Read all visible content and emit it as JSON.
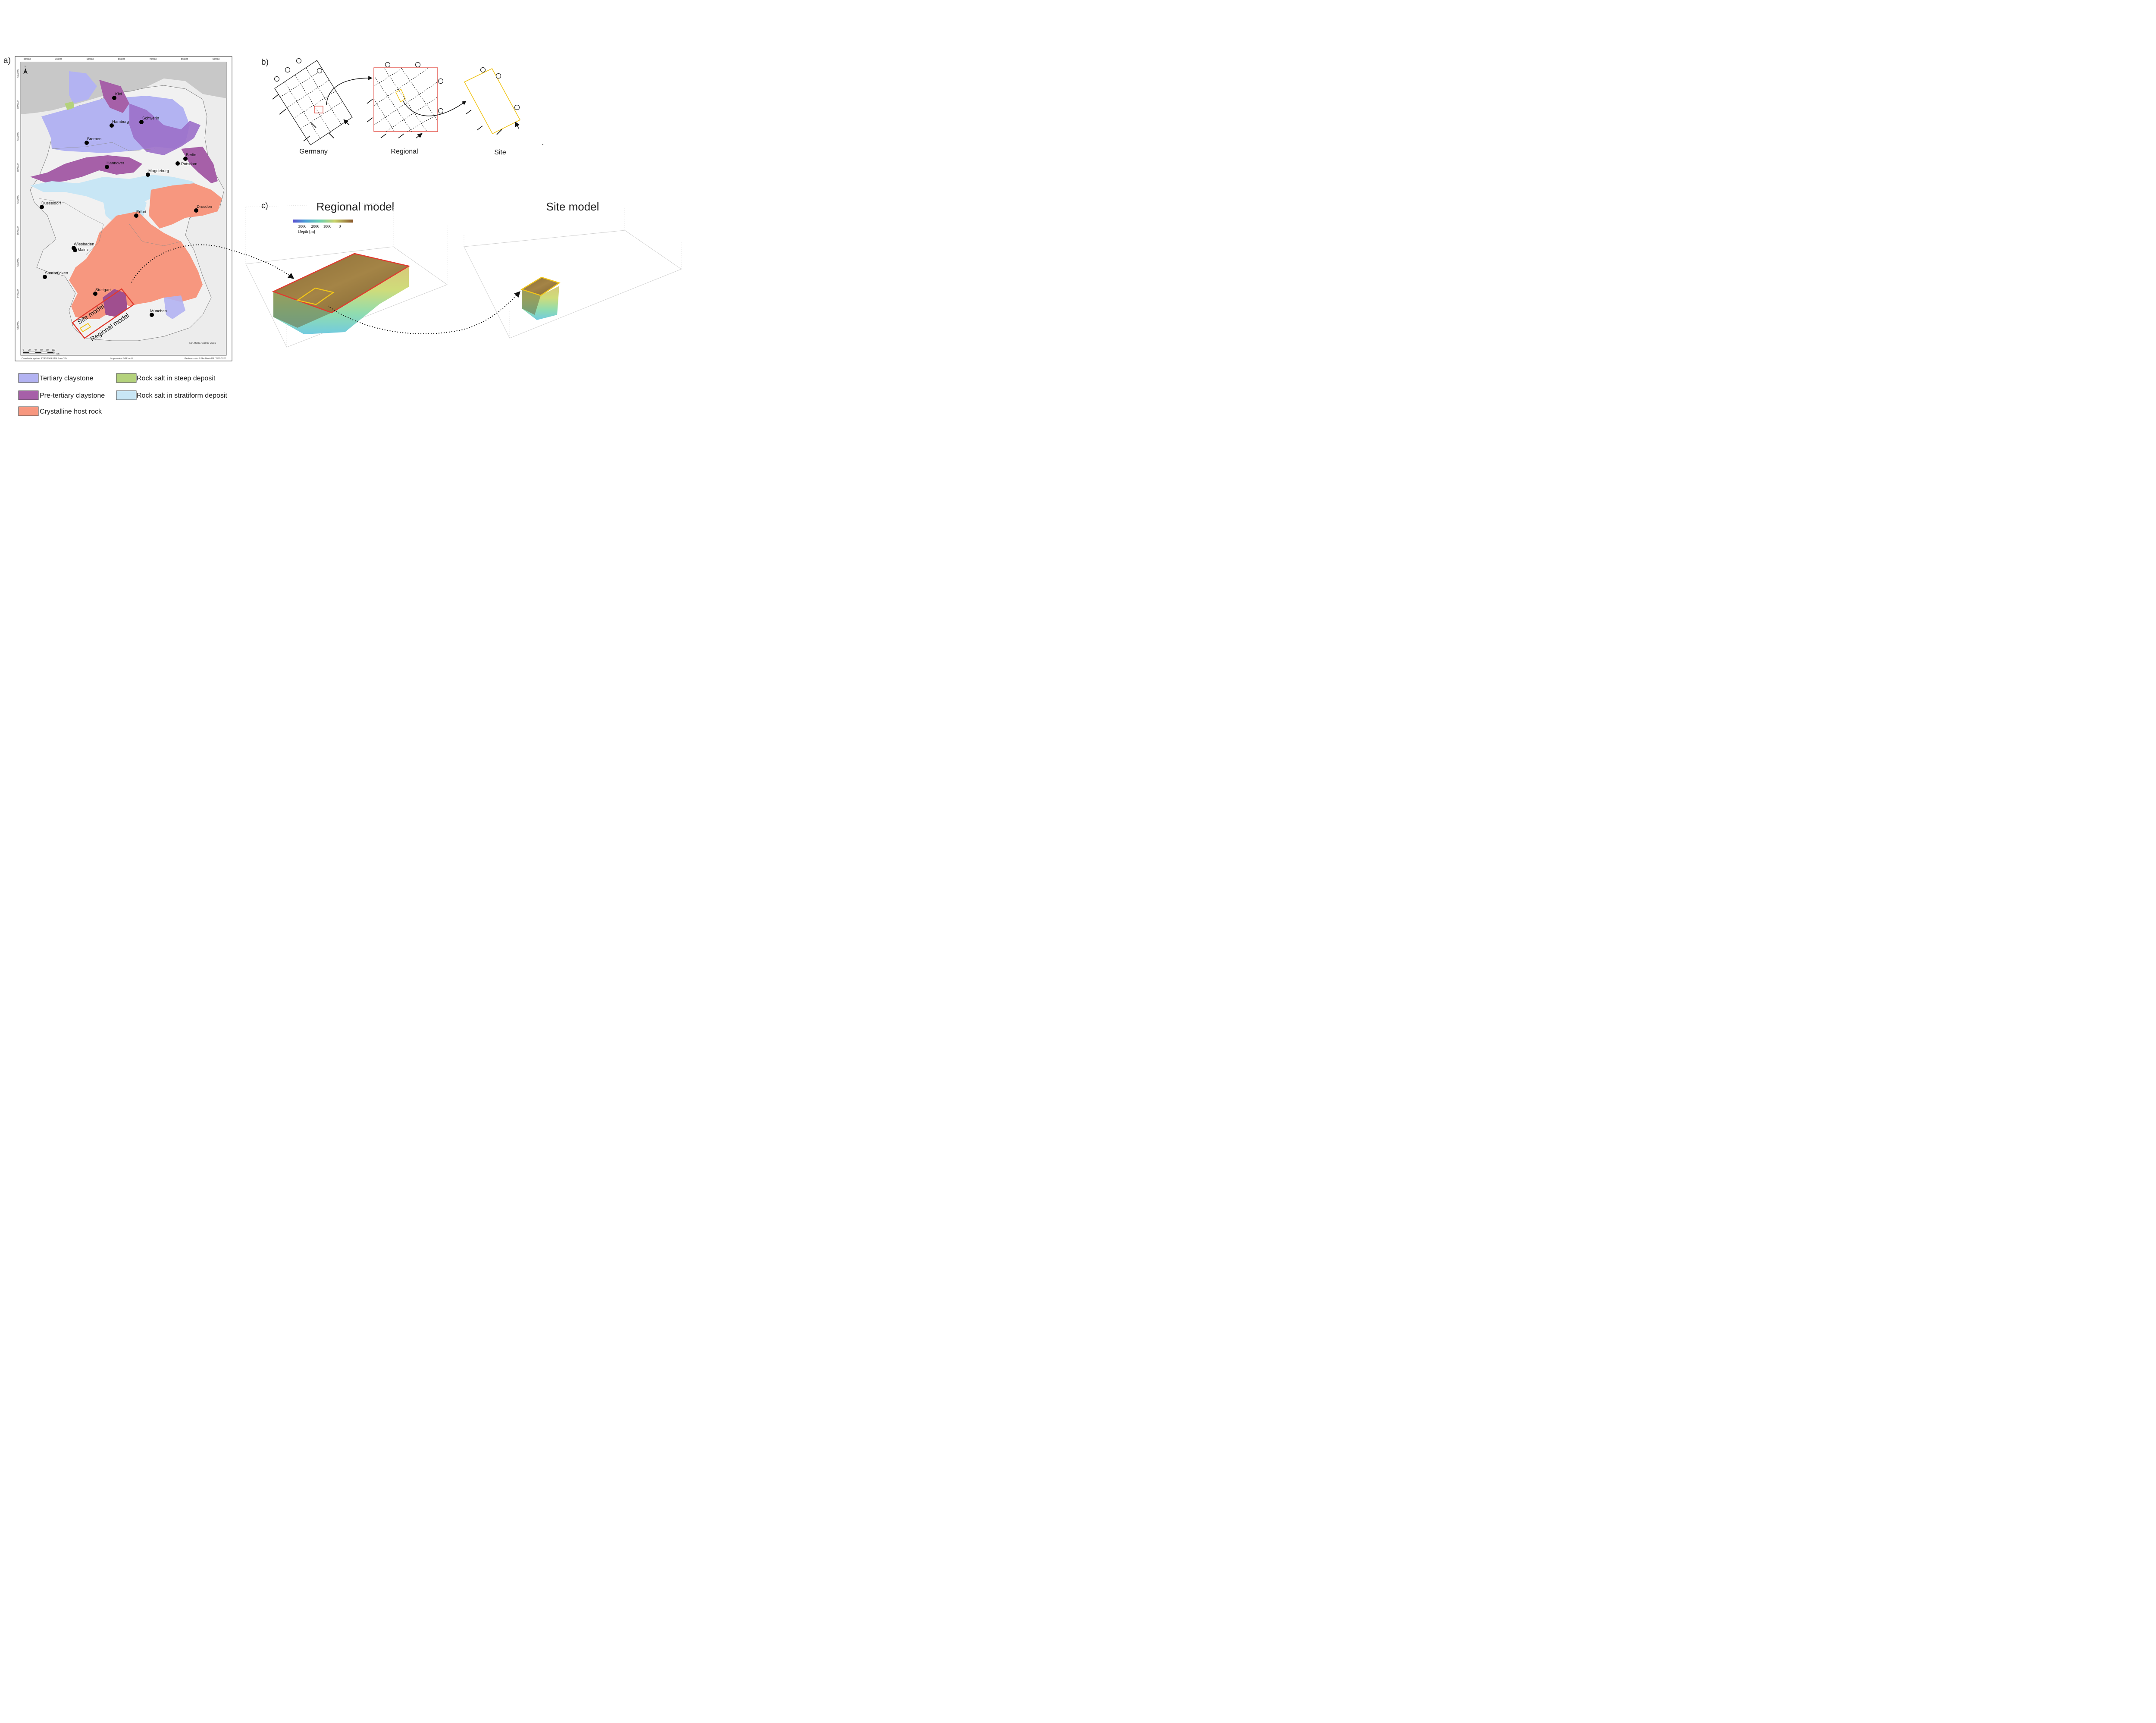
{
  "panels": {
    "a_label": "a)",
    "b_label": "b)",
    "c_label": "c)"
  },
  "map": {
    "x_ticks": [
      "300000",
      "400000",
      "500000",
      "600000",
      "700000",
      "800000",
      "900000"
    ],
    "y_ticks": [
      "6100000",
      "6000000",
      "5900000",
      "5800000",
      "5700000",
      "5600000",
      "5500000",
      "5400000",
      "5300000"
    ],
    "north_label": "N",
    "cities": [
      {
        "name": "Kiel"
      },
      {
        "name": "Hamburg"
      },
      {
        "name": "Schwerin"
      },
      {
        "name": "Bremen"
      },
      {
        "name": "Berlin"
      },
      {
        "name": "Potsdam"
      },
      {
        "name": "Hannover"
      },
      {
        "name": "Magdeburg"
      },
      {
        "name": "Düsseldorf"
      },
      {
        "name": "Dresden"
      },
      {
        "name": "Erfurt"
      },
      {
        "name": "Wiesbaden"
      },
      {
        "name": "Mainz"
      },
      {
        "name": "Saarbrücken"
      },
      {
        "name": "Stuttgart"
      },
      {
        "name": "München"
      }
    ],
    "site_model_label": "Site model",
    "regional_model_label": "Regional model",
    "attribution": "Esri, HERE, Garmin, USGS",
    "scale_ticks": [
      "0",
      "20",
      "40",
      "60",
      "80",
      "100"
    ],
    "scale_unit": "km",
    "footer_left": "Coordinate system: ETRS 1989 UTM Zone 32N",
    "footer_center": "Map content BGE mbH",
    "footer_right": "Geobasis data © GeoBasis-DE / BKG 2020",
    "colors": {
      "tertiary_claystone": "#b3b3f2",
      "pre_tertiary_claystone": "#a660a8",
      "crystalline_host_rock": "#f7977f",
      "rock_salt_steep": "#b4d27c",
      "rock_salt_stratiform": "#c8e6f5",
      "land": "#ececec",
      "sea": "#c8c8c8"
    }
  },
  "panel_b": {
    "labels": [
      "Germany",
      "Regional",
      "Site"
    ],
    "colors": {
      "regional_box": "#e03a2f",
      "site_box": "#f0c419"
    }
  },
  "panel_c": {
    "regional_title": "Regional model",
    "site_title": "Site model",
    "colorbar_ticks": [
      "3000",
      "2000",
      "1000",
      "0"
    ],
    "colorbar_label": "Depth [m]"
  },
  "legend": [
    {
      "label": "Tertiary claystone",
      "color": "#b3b3f2"
    },
    {
      "label": "Rock salt in steep deposit",
      "color": "#b4d27c"
    },
    {
      "label": "Pre-tertiary claystone",
      "color": "#a660a8"
    },
    {
      "label": "Rock salt in stratiform deposit",
      "color": "#c8e6f5"
    },
    {
      "label": "Crystalline host rock",
      "color": "#f7977f"
    }
  ]
}
